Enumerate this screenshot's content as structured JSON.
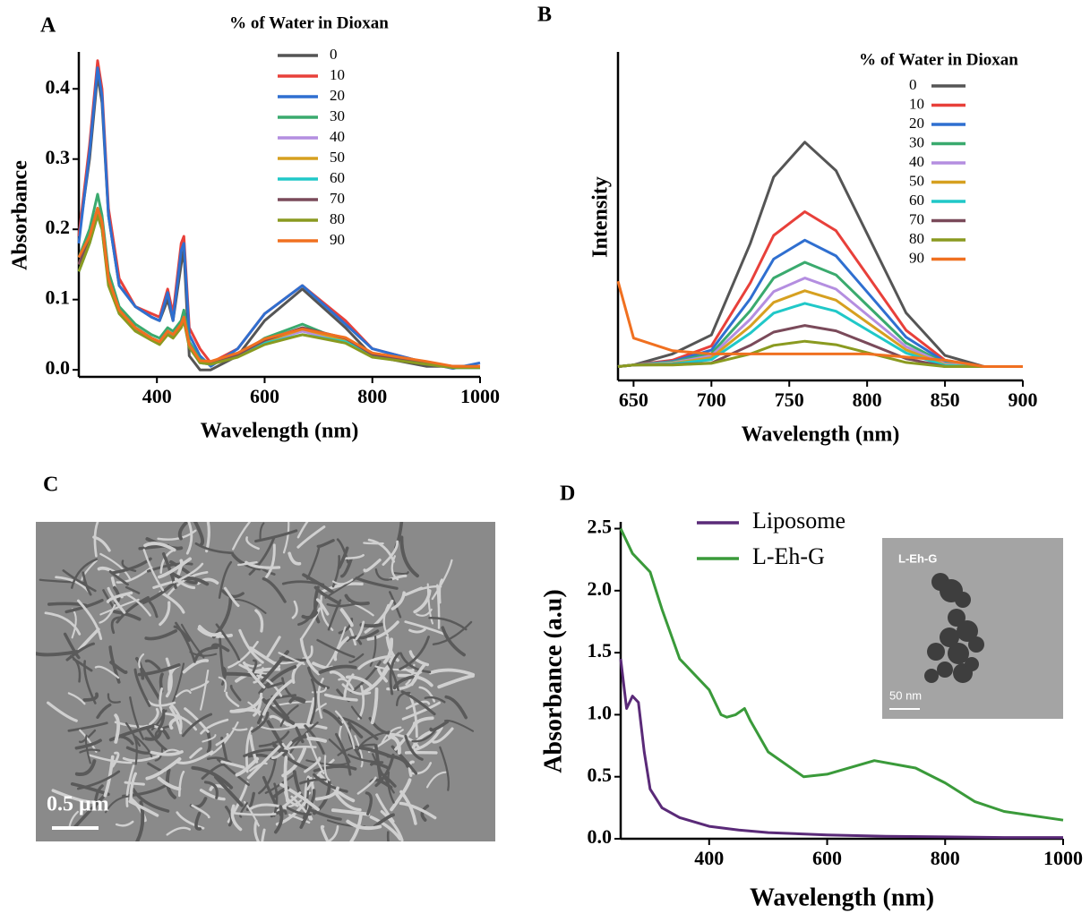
{
  "chart_data": [
    {
      "type": "line",
      "panel": "A",
      "xlabel": "Wavelength (nm)",
      "ylabel": "Absorbance",
      "legend_title": "% of Water in Dioxan",
      "xlim": [
        255,
        1000
      ],
      "xticks": [
        400,
        600,
        800,
        1000
      ],
      "ylim": [
        -0.01,
        0.45
      ],
      "yticks": [
        {
          "value": 0,
          "label": "0.0"
        },
        0.1,
        0.2,
        0.3,
        0.4
      ],
      "x": [
        255,
        275,
        290,
        298,
        310,
        330,
        360,
        390,
        405,
        420,
        430,
        445,
        450,
        460,
        480,
        500,
        550,
        600,
        670,
        750,
        800,
        900,
        950,
        1000
      ],
      "series": [
        {
          "name": "0",
          "color": "#555555",
          "values": [
            0.19,
            0.3,
            0.42,
            0.38,
            0.22,
            0.12,
            0.09,
            0.075,
            0.07,
            0.1,
            0.07,
            0.15,
            0.17,
            0.02,
            0.0,
            0.0,
            0.02,
            0.07,
            0.115,
            0.06,
            0.02,
            0.005,
            0.005,
            0.005
          ]
        },
        {
          "name": "10",
          "color": "#e8403a",
          "values": [
            0.19,
            0.32,
            0.44,
            0.4,
            0.23,
            0.13,
            0.09,
            0.08,
            0.075,
            0.115,
            0.08,
            0.18,
            0.19,
            0.06,
            0.03,
            0.01,
            0.03,
            0.08,
            0.12,
            0.07,
            0.03,
            0.01,
            0.005,
            0.005
          ]
        },
        {
          "name": "20",
          "color": "#2f6fd0",
          "values": [
            0.18,
            0.31,
            0.43,
            0.39,
            0.22,
            0.12,
            0.09,
            0.075,
            0.07,
            0.11,
            0.07,
            0.17,
            0.18,
            0.05,
            0.02,
            0.005,
            0.03,
            0.08,
            0.12,
            0.065,
            0.03,
            0.01,
            0.002,
            0.01
          ]
        },
        {
          "name": "30",
          "color": "#3aaa6e",
          "values": [
            0.16,
            0.2,
            0.25,
            0.22,
            0.14,
            0.09,
            0.065,
            0.05,
            0.045,
            0.06,
            0.055,
            0.07,
            0.085,
            0.04,
            0.015,
            0.01,
            0.02,
            0.045,
            0.065,
            0.04,
            0.02,
            0.01,
            0.003,
            0.003
          ]
        },
        {
          "name": "40",
          "color": "#b48ee0",
          "values": [
            0.15,
            0.19,
            0.23,
            0.21,
            0.13,
            0.085,
            0.06,
            0.045,
            0.04,
            0.055,
            0.05,
            0.065,
            0.075,
            0.035,
            0.01,
            0.008,
            0.02,
            0.04,
            0.055,
            0.04,
            0.02,
            0.01,
            0.003,
            0.003
          ]
        },
        {
          "name": "50",
          "color": "#d6a020",
          "values": [
            0.15,
            0.19,
            0.23,
            0.21,
            0.13,
            0.085,
            0.06,
            0.045,
            0.04,
            0.055,
            0.05,
            0.065,
            0.075,
            0.035,
            0.012,
            0.01,
            0.022,
            0.04,
            0.058,
            0.042,
            0.02,
            0.01,
            0.004,
            0.004
          ]
        },
        {
          "name": "60",
          "color": "#20c8c8",
          "values": [
            0.14,
            0.18,
            0.22,
            0.2,
            0.125,
            0.08,
            0.058,
            0.043,
            0.038,
            0.052,
            0.048,
            0.062,
            0.072,
            0.033,
            0.01,
            0.008,
            0.02,
            0.038,
            0.05,
            0.04,
            0.02,
            0.01,
            0.003,
            0.003
          ]
        },
        {
          "name": "70",
          "color": "#7a4a5a",
          "values": [
            0.15,
            0.19,
            0.23,
            0.21,
            0.13,
            0.085,
            0.06,
            0.045,
            0.04,
            0.055,
            0.05,
            0.065,
            0.075,
            0.035,
            0.012,
            0.01,
            0.022,
            0.042,
            0.06,
            0.045,
            0.022,
            0.01,
            0.004,
            0.004
          ]
        },
        {
          "name": "80",
          "color": "#8a9a20",
          "values": [
            0.14,
            0.18,
            0.22,
            0.2,
            0.12,
            0.08,
            0.055,
            0.042,
            0.036,
            0.05,
            0.045,
            0.06,
            0.07,
            0.032,
            0.01,
            0.008,
            0.018,
            0.036,
            0.05,
            0.038,
            0.018,
            0.008,
            0.003,
            0.003
          ]
        },
        {
          "name": "90",
          "color": "#f07020",
          "values": [
            0.16,
            0.19,
            0.23,
            0.21,
            0.13,
            0.085,
            0.06,
            0.045,
            0.04,
            0.055,
            0.05,
            0.065,
            0.075,
            0.036,
            0.013,
            0.012,
            0.024,
            0.044,
            0.058,
            0.046,
            0.024,
            0.012,
            0.005,
            0.005
          ]
        }
      ]
    },
    {
      "type": "line",
      "panel": "B",
      "xlabel": "Wavelength (nm)",
      "ylabel": "Intensity",
      "legend_title": "% of Water in Dioxan",
      "xlim": [
        640,
        900
      ],
      "xticks": [
        650,
        700,
        750,
        800,
        850,
        900
      ],
      "ylim": [
        0,
        100
      ],
      "x": [
        640,
        650,
        675,
        700,
        725,
        740,
        760,
        780,
        800,
        825,
        850,
        875,
        900
      ],
      "series": [
        {
          "name": "0",
          "color": "#555555",
          "values": [
            1,
            1.5,
            5,
            11,
            40,
            61,
            72,
            63,
            43,
            18,
            4.5,
            1,
            1
          ]
        },
        {
          "name": "10",
          "color": "#e8403a",
          "values": [
            1,
            1.5,
            3,
            7.5,
            27.5,
            42.5,
            50,
            44,
            30,
            12.5,
            3,
            1,
            1
          ]
        },
        {
          "name": "20",
          "color": "#2f6fd0",
          "values": [
            1,
            1.5,
            2.6,
            6.2,
            22.5,
            35,
            41,
            36,
            24.6,
            10.3,
            2.5,
            1,
            1
          ]
        },
        {
          "name": "30",
          "color": "#3aaa6e",
          "values": [
            1,
            1.5,
            2.4,
            5.1,
            18.7,
            29,
            34,
            30,
            20.4,
            8.5,
            2,
            1,
            1
          ]
        },
        {
          "name": "40",
          "color": "#b48ee0",
          "values": [
            1,
            1.5,
            2.2,
            4.4,
            16,
            24.7,
            29,
            25.5,
            17.4,
            7.3,
            1.8,
            1,
            1
          ]
        },
        {
          "name": "50",
          "color": "#d6a020",
          "values": [
            1,
            1.5,
            2,
            3.8,
            13.8,
            21.3,
            25,
            22,
            15,
            6.3,
            1.5,
            1,
            1
          ]
        },
        {
          "name": "60",
          "color": "#20c8c8",
          "values": [
            1,
            1.5,
            1.8,
            3.2,
            11.6,
            17.9,
            21,
            18.5,
            12.6,
            5.3,
            1.3,
            1,
            1
          ]
        },
        {
          "name": "70",
          "color": "#7a4a5a",
          "values": [
            1,
            1.5,
            1.6,
            2.1,
            7.7,
            11.9,
            14,
            12.3,
            8.4,
            3.5,
            1,
            1,
            1
          ]
        },
        {
          "name": "80",
          "color": "#8a9a20",
          "values": [
            1,
            1.5,
            1.5,
            2,
            5,
            7.7,
            9,
            7.9,
            5.4,
            2.3,
            1,
            1,
            1
          ]
        },
        {
          "name": "90",
          "color": "#f07020",
          "values": [
            28,
            10,
            6,
            5,
            5,
            5,
            5,
            5,
            5,
            4,
            3,
            1,
            1
          ]
        }
      ]
    },
    {
      "type": "line",
      "panel": "D",
      "xlabel": "Wavelength (nm)",
      "ylabel": "Absorbance (a.u)",
      "xlim": [
        250,
        1000
      ],
      "xticks": [
        400,
        600,
        800,
        1000
      ],
      "ylim": [
        0,
        2.54
      ],
      "yticks": [
        {
          "value": 0,
          "label": "0.0"
        },
        0.5,
        {
          "value": 1,
          "label": "1.0"
        },
        1.5,
        {
          "value": 2,
          "label": "2.0"
        },
        2.5
      ],
      "inset": {
        "label": "L-Eh-G",
        "scale_bar": "50 nm"
      },
      "series": [
        {
          "name": "Liposome",
          "color": "#5a2a78",
          "x": [
            250,
            260,
            270,
            280,
            290,
            300,
            320,
            350,
            400,
            450,
            500,
            600,
            700,
            800,
            900,
            1000
          ],
          "values": [
            1.45,
            1.05,
            1.15,
            1.1,
            0.7,
            0.4,
            0.25,
            0.17,
            0.1,
            0.07,
            0.05,
            0.03,
            0.02,
            0.015,
            0.01,
            0.01
          ]
        },
        {
          "name": "L-Eh-G",
          "color": "#3a9a3a",
          "x": [
            250,
            270,
            300,
            320,
            350,
            380,
            400,
            420,
            430,
            445,
            460,
            470,
            500,
            560,
            600,
            680,
            750,
            800,
            850,
            900,
            1000
          ],
          "values": [
            2.5,
            2.3,
            2.15,
            1.85,
            1.45,
            1.3,
            1.2,
            1.0,
            0.98,
            1.0,
            1.05,
            0.95,
            0.7,
            0.5,
            0.52,
            0.63,
            0.57,
            0.45,
            0.3,
            0.22,
            0.15
          ]
        }
      ]
    }
  ],
  "micrograph": {
    "panel": "C",
    "scale_bar": "0.5 μm"
  }
}
